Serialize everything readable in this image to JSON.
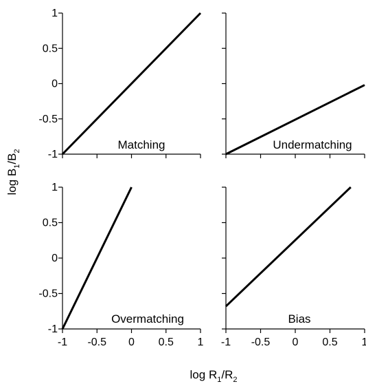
{
  "chart_data": [
    {
      "type": "line",
      "title": "Matching",
      "x": [
        -1,
        1
      ],
      "y": [
        -1,
        1
      ],
      "xlim": [
        -1,
        1
      ],
      "ylim": [
        -1,
        1
      ],
      "xticks": [
        "-1",
        "-0.5",
        "0",
        "0.5",
        "1"
      ],
      "yticks": [
        "1",
        "0.5",
        "0",
        "-0.5",
        "-1"
      ],
      "show_xtick_labels": false,
      "show_ytick_labels": true,
      "grid": false
    },
    {
      "type": "line",
      "title": "Undermatching",
      "x": [
        -1,
        1
      ],
      "y": [
        -1,
        -0.02
      ],
      "xlim": [
        -1,
        1
      ],
      "ylim": [
        -1,
        1
      ],
      "show_xtick_labels": false,
      "show_ytick_labels": false,
      "grid": false
    },
    {
      "type": "line",
      "title": "Overmatching",
      "x": [
        -1,
        0
      ],
      "y": [
        -1,
        1
      ],
      "xlim": [
        -1,
        1
      ],
      "ylim": [
        -1,
        1
      ],
      "xticks": [
        "-1",
        "-0.5",
        "0",
        "0.5",
        "1"
      ],
      "yticks": [
        "1",
        "0.5",
        "0",
        "-0.5",
        "-1"
      ],
      "show_xtick_labels": true,
      "show_ytick_labels": true,
      "grid": false
    },
    {
      "type": "line",
      "title": "Bias",
      "x": [
        -1,
        0.8
      ],
      "y": [
        -0.68,
        1
      ],
      "xlim": [
        -1,
        1
      ],
      "ylim": [
        -1,
        1
      ],
      "xticks": [
        "-1",
        "-0.5",
        "0",
        "0.5",
        "1"
      ],
      "show_xtick_labels": true,
      "show_ytick_labels": false,
      "grid": false
    }
  ],
  "labels": {
    "ylabel_main": "log B",
    "ylabel_sub1": "1",
    "ylabel_mid": "/B",
    "ylabel_sub2": "2",
    "xlabel_main": "log R",
    "xlabel_sub1": "1",
    "xlabel_mid": "/R",
    "xlabel_sub2": "2"
  }
}
